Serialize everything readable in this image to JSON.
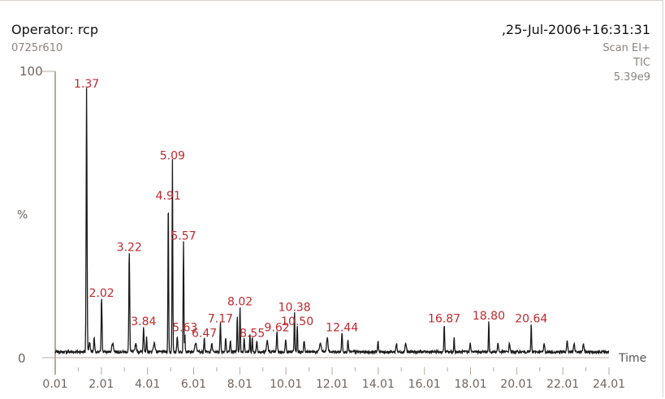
{
  "header": {
    "operator": "Operator: rcp",
    "sample_id": "0725r610",
    "datetime": ",25-Jul-2006+16:31:31",
    "scan_mode": "Scan EI+",
    "trace_type": "TIC",
    "intensity": "5.39e9"
  },
  "colors": {
    "trace": "#1a1a1a",
    "peak_label": "#c0282d",
    "axis": "#b5aaa2",
    "axis_text": "#6e6560"
  },
  "chart_data": {
    "type": "line",
    "title": "",
    "xlabel": "Time",
    "ylabel": "%",
    "xlim": [
      0.01,
      24.01
    ],
    "ylim": [
      0,
      100
    ],
    "x_ticks": [
      "0.01",
      "2.01",
      "4.01",
      "6.01",
      "8.01",
      "10.01",
      "12.01",
      "14.01",
      "16.01",
      "18.01",
      "20.01",
      "22.01",
      "24.01"
    ],
    "y_ticks": [
      "0",
      "%",
      "100"
    ],
    "baseline": 2,
    "peaks": [
      {
        "x": 1.37,
        "y": 92,
        "w": 0.05
      },
      {
        "x": 1.5,
        "y": 3,
        "w": 0.08
      },
      {
        "x": 1.7,
        "y": 5,
        "w": 0.05
      },
      {
        "x": 2.02,
        "y": 19,
        "w": 0.05
      },
      {
        "x": 2.5,
        "y": 3,
        "w": 0.1
      },
      {
        "x": 3.22,
        "y": 35,
        "w": 0.05
      },
      {
        "x": 3.5,
        "y": 3,
        "w": 0.08
      },
      {
        "x": 3.84,
        "y": 9,
        "w": 0.05
      },
      {
        "x": 3.97,
        "y": 5,
        "w": 0.04
      },
      {
        "x": 4.3,
        "y": 3,
        "w": 0.1
      },
      {
        "x": 4.91,
        "y": 53,
        "w": 0.04
      },
      {
        "x": 5.09,
        "y": 67,
        "w": 0.04
      },
      {
        "x": 5.3,
        "y": 5,
        "w": 0.06
      },
      {
        "x": 5.57,
        "y": 39,
        "w": 0.04
      },
      {
        "x": 5.63,
        "y": 7,
        "w": 0.03
      },
      {
        "x": 6.1,
        "y": 3,
        "w": 0.1
      },
      {
        "x": 6.47,
        "y": 5,
        "w": 0.05
      },
      {
        "x": 6.8,
        "y": 3,
        "w": 0.06
      },
      {
        "x": 7.17,
        "y": 10,
        "w": 0.05
      },
      {
        "x": 7.4,
        "y": 5,
        "w": 0.05
      },
      {
        "x": 7.6,
        "y": 4,
        "w": 0.05
      },
      {
        "x": 7.9,
        "y": 13,
        "w": 0.04
      },
      {
        "x": 8.02,
        "y": 16,
        "w": 0.04
      },
      {
        "x": 8.2,
        "y": 5,
        "w": 0.05
      },
      {
        "x": 8.45,
        "y": 6,
        "w": 0.04
      },
      {
        "x": 8.55,
        "y": 5,
        "w": 0.04
      },
      {
        "x": 8.75,
        "y": 4,
        "w": 0.05
      },
      {
        "x": 9.2,
        "y": 4,
        "w": 0.08
      },
      {
        "x": 9.62,
        "y": 7,
        "w": 0.05
      },
      {
        "x": 10.0,
        "y": 4,
        "w": 0.06
      },
      {
        "x": 10.38,
        "y": 14,
        "w": 0.04
      },
      {
        "x": 10.5,
        "y": 9,
        "w": 0.04
      },
      {
        "x": 10.8,
        "y": 4,
        "w": 0.06
      },
      {
        "x": 11.5,
        "y": 3,
        "w": 0.1
      },
      {
        "x": 11.8,
        "y": 5,
        "w": 0.08
      },
      {
        "x": 12.44,
        "y": 7,
        "w": 0.05
      },
      {
        "x": 12.7,
        "y": 4,
        "w": 0.05
      },
      {
        "x": 14.0,
        "y": 4,
        "w": 0.05
      },
      {
        "x": 14.8,
        "y": 3,
        "w": 0.06
      },
      {
        "x": 15.2,
        "y": 3,
        "w": 0.08
      },
      {
        "x": 16.87,
        "y": 10,
        "w": 0.04
      },
      {
        "x": 17.3,
        "y": 5,
        "w": 0.04
      },
      {
        "x": 18.0,
        "y": 3,
        "w": 0.06
      },
      {
        "x": 18.8,
        "y": 11,
        "w": 0.04
      },
      {
        "x": 19.2,
        "y": 3,
        "w": 0.06
      },
      {
        "x": 19.7,
        "y": 3,
        "w": 0.06
      },
      {
        "x": 20.64,
        "y": 10,
        "w": 0.04
      },
      {
        "x": 21.2,
        "y": 3,
        "w": 0.06
      },
      {
        "x": 22.2,
        "y": 4,
        "w": 0.06
      },
      {
        "x": 22.5,
        "y": 3,
        "w": 0.06
      },
      {
        "x": 22.9,
        "y": 3,
        "w": 0.06
      }
    ],
    "labels": [
      {
        "text": "1.37",
        "x": 1.37,
        "y": 92
      },
      {
        "text": "2.02",
        "x": 2.02,
        "y": 19
      },
      {
        "text": "3.22",
        "x": 3.22,
        "y": 35
      },
      {
        "text": "3.84",
        "x": 3.84,
        "y": 9
      },
      {
        "text": "4.91",
        "x": 4.91,
        "y": 53
      },
      {
        "text": "5.09",
        "x": 5.09,
        "y": 67
      },
      {
        "text": "5.57",
        "x": 5.57,
        "y": 39
      },
      {
        "text": "5.63",
        "x": 5.63,
        "y": 7
      },
      {
        "text": "6.47",
        "x": 6.47,
        "y": 5
      },
      {
        "text": "7.17",
        "x": 7.17,
        "y": 10
      },
      {
        "text": "8.02",
        "x": 8.02,
        "y": 16
      },
      {
        "text": "8.55",
        "x": 8.55,
        "y": 5
      },
      {
        "text": "9.62",
        "x": 9.62,
        "y": 7
      },
      {
        "text": "10.38",
        "x": 10.38,
        "y": 14
      },
      {
        "text": "10.50",
        "x": 10.5,
        "y": 9
      },
      {
        "text": "12.44",
        "x": 12.44,
        "y": 7
      },
      {
        "text": "16.87",
        "x": 16.87,
        "y": 10
      },
      {
        "text": "18.80",
        "x": 18.8,
        "y": 11
      },
      {
        "text": "20.64",
        "x": 20.64,
        "y": 10
      }
    ]
  }
}
